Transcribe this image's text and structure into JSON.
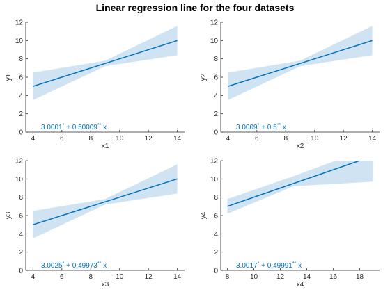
{
  "figure": {
    "title": "Linear regression line for the four datasets"
  },
  "colors": {
    "line": "#0072bd",
    "band": "#cfe3f2",
    "axis": "#262626"
  },
  "chart_data": [
    {
      "type": "line",
      "xlabel": "x1",
      "ylabel": "y1",
      "xlim": [
        3.5,
        14.5
      ],
      "ylim": [
        0,
        12
      ],
      "xticks": [
        4,
        6,
        8,
        10,
        12,
        14
      ],
      "yticks": [
        0,
        2,
        4,
        6,
        8,
        10,
        12
      ],
      "x": [
        4,
        14
      ],
      "y": [
        5.0,
        10.0
      ],
      "band": {
        "x": [
          4,
          9,
          14
        ],
        "lower": [
          3.5,
          7.2,
          8.4
        ],
        "upper": [
          6.5,
          7.8,
          11.6
        ]
      },
      "equation": {
        "intercept": "3.0001",
        "intercept_sig": "*",
        "slope": "0.50009",
        "slope_sig": "**",
        "var": "x"
      }
    },
    {
      "type": "line",
      "xlabel": "x2",
      "ylabel": "y2",
      "xlim": [
        3.5,
        14.5
      ],
      "ylim": [
        0,
        12
      ],
      "xticks": [
        4,
        6,
        8,
        10,
        12,
        14
      ],
      "yticks": [
        0,
        2,
        4,
        6,
        8,
        10,
        12
      ],
      "x": [
        4,
        14
      ],
      "y": [
        5.0,
        10.0
      ],
      "band": {
        "x": [
          4,
          9,
          14
        ],
        "lower": [
          3.5,
          7.2,
          8.4
        ],
        "upper": [
          6.5,
          7.8,
          11.6
        ]
      },
      "equation": {
        "intercept": "3.0009",
        "intercept_sig": "*",
        "slope": "0.5",
        "slope_sig": "**",
        "var": "x"
      }
    },
    {
      "type": "line",
      "xlabel": "x3",
      "ylabel": "y3",
      "xlim": [
        3.5,
        14.5
      ],
      "ylim": [
        0,
        12
      ],
      "xticks": [
        4,
        6,
        8,
        10,
        12,
        14
      ],
      "yticks": [
        0,
        2,
        4,
        6,
        8,
        10,
        12
      ],
      "x": [
        4,
        14
      ],
      "y": [
        5.0,
        10.0
      ],
      "band": {
        "x": [
          4,
          9,
          14
        ],
        "lower": [
          3.5,
          7.2,
          8.4
        ],
        "upper": [
          6.5,
          7.8,
          11.6
        ]
      },
      "equation": {
        "intercept": "3.0025",
        "intercept_sig": "*",
        "slope": "0.49973",
        "slope_sig": "**",
        "var": "x"
      }
    },
    {
      "type": "line",
      "xlabel": "x4",
      "ylabel": "y4",
      "xlim": [
        7.5,
        19.5
      ],
      "ylim": [
        0,
        12
      ],
      "xticks": [
        8,
        10,
        12,
        14,
        16,
        18
      ],
      "yticks": [
        0,
        2,
        4,
        6,
        8,
        10,
        12
      ],
      "x": [
        8,
        18
      ],
      "y": [
        7.0,
        12.0
      ],
      "band": {
        "x": [
          8,
          13,
          19
        ],
        "lower": [
          6.2,
          9.2,
          9.7
        ],
        "upper": [
          7.8,
          10.3,
          13.5
        ]
      },
      "equation": {
        "intercept": "3.0017",
        "intercept_sig": "*",
        "slope": "0.49991",
        "slope_sig": "**",
        "var": "x"
      }
    }
  ]
}
